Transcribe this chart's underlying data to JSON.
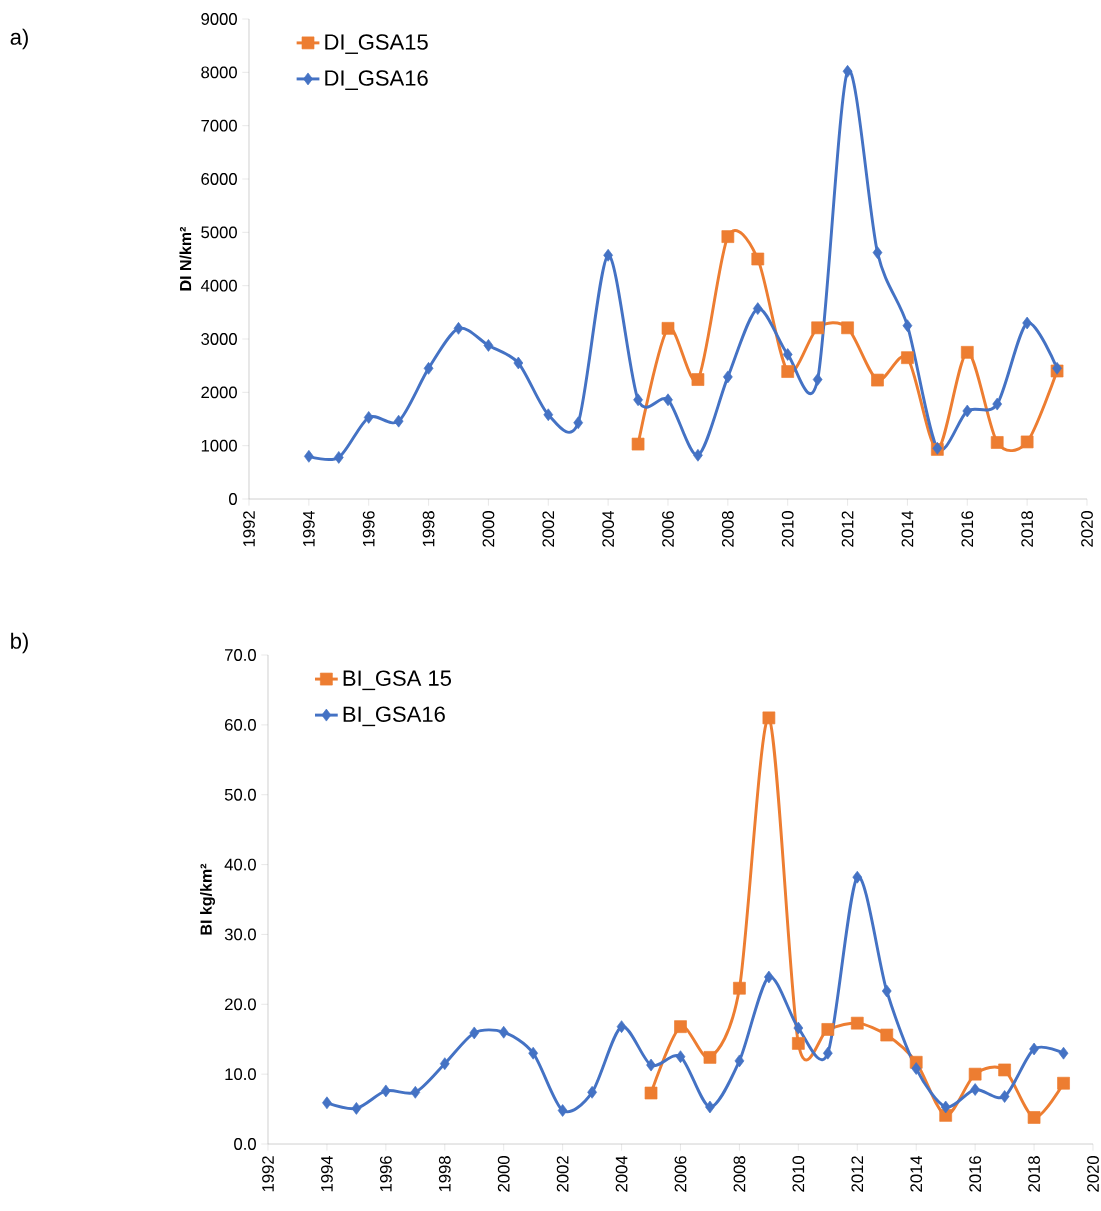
{
  "chart_data": [
    {
      "type": "line",
      "ylabel": "DI N/km²",
      "annotations": [
        "a)"
      ],
      "legend": "top left",
      "grid": false,
      "line_style": "solid",
      "xlim": [
        1992,
        2020
      ],
      "xticks": [
        1992,
        1994,
        1996,
        1998,
        2000,
        2002,
        2004,
        2006,
        2008,
        2010,
        2012,
        2014,
        2016,
        2018,
        2020
      ],
      "ylim": [
        0,
        9000
      ],
      "yticks": [
        0,
        1000,
        2000,
        3000,
        4000,
        5000,
        6000,
        7000,
        8000,
        9000
      ],
      "series": [
        {
          "name": "DI_GSA15",
          "color": "#ed7d31",
          "marker": "square",
          "x": [
            2005,
            2006,
            2007,
            2008,
            2009,
            2010,
            2011,
            2012,
            2013,
            2014,
            2015,
            2016,
            2017,
            2018,
            2019
          ],
          "values": [
            1030,
            3200,
            2240,
            4920,
            4500,
            2390,
            3210,
            3210,
            2230,
            2650,
            930,
            2750,
            1060,
            1070,
            2400
          ]
        },
        {
          "name": "DI_GSA16",
          "color": "#4472c4",
          "marker": "diamond",
          "x": [
            1994,
            1995,
            1996,
            1997,
            1998,
            1999,
            2000,
            2001,
            2002,
            2003,
            2004,
            2005,
            2006,
            2007,
            2008,
            2009,
            2010,
            2011,
            2012,
            2013,
            2014,
            2015,
            2016,
            2017,
            2018,
            2019
          ],
          "values": [
            800,
            780,
            1530,
            1460,
            2450,
            3200,
            2880,
            2550,
            1580,
            1430,
            4570,
            1860,
            1860,
            820,
            2290,
            3570,
            2710,
            2240,
            8020,
            4620,
            3250,
            950,
            1650,
            1780,
            3300,
            2450
          ]
        }
      ]
    },
    {
      "type": "line",
      "ylabel": "BI kg/km²",
      "annotations": [
        "b)"
      ],
      "legend": "top left",
      "grid": false,
      "line_style": "solid",
      "xlim": [
        1992,
        2020
      ],
      "xticks": [
        1992,
        1994,
        1996,
        1998,
        2000,
        2002,
        2004,
        2006,
        2008,
        2010,
        2012,
        2014,
        2016,
        2018,
        2020
      ],
      "ylim": [
        0,
        70
      ],
      "yticks": [
        {
          "value": 0,
          "label": "0.0"
        },
        {
          "value": 10,
          "label": "10.0"
        },
        {
          "value": 20,
          "label": "20.0"
        },
        {
          "value": 30,
          "label": "30.0"
        },
        {
          "value": 40,
          "label": "40.0"
        },
        {
          "value": 50,
          "label": "50.0"
        },
        {
          "value": 60,
          "label": "60.0"
        },
        {
          "value": 70,
          "label": "70.0"
        }
      ],
      "series": [
        {
          "name": "BI_GSA 15",
          "color": "#ed7d31",
          "marker": "square",
          "x": [
            2005,
            2006,
            2007,
            2008,
            2009,
            2010,
            2011,
            2012,
            2013,
            2014,
            2015,
            2016,
            2017,
            2018,
            2019
          ],
          "values": [
            7.3,
            16.8,
            12.4,
            22.3,
            61.0,
            14.4,
            16.4,
            17.3,
            15.6,
            11.7,
            4.1,
            10.0,
            10.6,
            3.8,
            8.7
          ]
        },
        {
          "name": "BI_GSA16",
          "color": "#4472c4",
          "marker": "diamond",
          "x": [
            1994,
            1995,
            1996,
            1997,
            1998,
            1999,
            2000,
            2001,
            2002,
            2003,
            2004,
            2005,
            2006,
            2007,
            2008,
            2009,
            2010,
            2011,
            2012,
            2013,
            2014,
            2015,
            2016,
            2017,
            2018,
            2019
          ],
          "values": [
            5.9,
            5.1,
            7.6,
            7.4,
            11.5,
            15.9,
            16.0,
            13.0,
            4.8,
            7.4,
            16.8,
            11.3,
            12.5,
            5.3,
            11.9,
            23.9,
            16.6,
            13.0,
            38.2,
            21.9,
            10.8,
            5.3,
            7.8,
            6.8,
            13.6,
            13.0
          ]
        }
      ]
    }
  ]
}
